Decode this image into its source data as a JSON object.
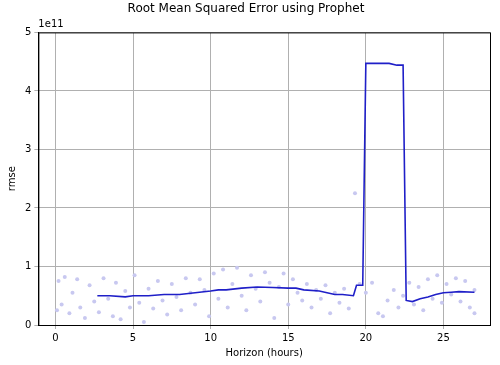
{
  "chart_data": {
    "type": "scatter",
    "title": "Root Mean Squared Error using Prophet",
    "x_label": "Horizon (hours)",
    "y_label": "rmse",
    "annotation": "1e11",
    "xlim": [
      -1.1,
      28
    ],
    "xticks": [
      0,
      5,
      10,
      15,
      20,
      25
    ],
    "ylim": [
      0,
      5
    ],
    "yticks": [
      0,
      1,
      2,
      3,
      4,
      5
    ],
    "grid": true,
    "series": [
      {
        "type": "scatter",
        "color": "#c8c8f0",
        "marker": "circle",
        "x": [
          0.1,
          0.2,
          0.4,
          0.6,
          0.9,
          1.1,
          1.4,
          1.6,
          1.9,
          2.2,
          2.5,
          2.8,
          3.1,
          3.4,
          3.7,
          3.9,
          4.2,
          4.5,
          4.8,
          5.1,
          5.4,
          5.7,
          6.0,
          6.3,
          6.6,
          6.9,
          7.2,
          7.5,
          7.8,
          8.1,
          8.4,
          8.7,
          9.0,
          9.3,
          9.6,
          9.9,
          10.2,
          10.5,
          10.8,
          11.1,
          11.4,
          11.7,
          12.0,
          12.3,
          12.6,
          12.9,
          13.2,
          13.5,
          13.8,
          14.1,
          14.4,
          14.7,
          15.0,
          15.3,
          15.6,
          15.9,
          16.2,
          16.5,
          16.8,
          17.1,
          17.4,
          17.7,
          18.0,
          18.3,
          18.6,
          18.9,
          19.3,
          19.6,
          20.0,
          20.4,
          20.8,
          21.1,
          21.4,
          21.8,
          22.1,
          22.4,
          22.8,
          23.1,
          23.4,
          23.7,
          24.0,
          24.3,
          24.6,
          24.9,
          25.2,
          25.5,
          25.8,
          26.1,
          26.4,
          26.7,
          27.0,
          27.0
        ],
        "values": [
          0.25,
          0.75,
          0.35,
          0.82,
          0.2,
          0.55,
          0.78,
          0.3,
          0.12,
          0.68,
          0.4,
          0.22,
          0.8,
          0.45,
          0.15,
          0.72,
          0.1,
          0.58,
          0.3,
          0.85,
          0.38,
          0.05,
          0.62,
          0.28,
          0.75,
          0.42,
          0.18,
          0.7,
          0.48,
          0.25,
          0.8,
          0.55,
          0.35,
          0.78,
          0.6,
          0.15,
          0.88,
          0.45,
          0.95,
          0.3,
          0.7,
          0.98,
          0.5,
          0.25,
          0.85,
          0.62,
          0.4,
          0.9,
          0.72,
          0.12,
          0.65,
          0.88,
          0.35,
          0.78,
          0.55,
          0.42,
          0.7,
          0.3,
          0.6,
          0.45,
          0.68,
          0.2,
          0.55,
          0.38,
          0.62,
          0.28,
          2.25,
          0.7,
          0.55,
          0.72,
          0.2,
          0.15,
          0.42,
          0.6,
          0.3,
          0.5,
          0.72,
          0.35,
          0.65,
          0.25,
          0.78,
          0.45,
          0.85,
          0.38,
          0.7,
          0.52,
          0.8,
          0.4,
          0.75,
          0.3,
          0.6,
          0.2
        ]
      },
      {
        "type": "line",
        "color": "#1f1fc8",
        "line_style": "solid",
        "x": [
          2.7,
          3.5,
          4.5,
          5,
          6,
          7,
          8,
          9,
          10,
          10.5,
          11,
          12,
          13,
          14,
          15,
          15.5,
          16,
          17,
          18,
          18.5,
          19.2,
          19.4,
          19.8,
          20,
          21,
          21.5,
          22,
          22.4,
          22.6,
          23,
          23.5,
          24,
          24.5,
          25,
          25.5,
          26,
          27
        ],
        "values": [
          0.5,
          0.5,
          0.48,
          0.5,
          0.5,
          0.52,
          0.52,
          0.55,
          0.58,
          0.6,
          0.6,
          0.63,
          0.65,
          0.64,
          0.63,
          0.63,
          0.6,
          0.58,
          0.52,
          0.52,
          0.5,
          0.68,
          0.68,
          4.47,
          4.47,
          4.47,
          4.44,
          4.44,
          0.42,
          0.4,
          0.45,
          0.48,
          0.52,
          0.55,
          0.56,
          0.57,
          0.56
        ]
      }
    ]
  }
}
